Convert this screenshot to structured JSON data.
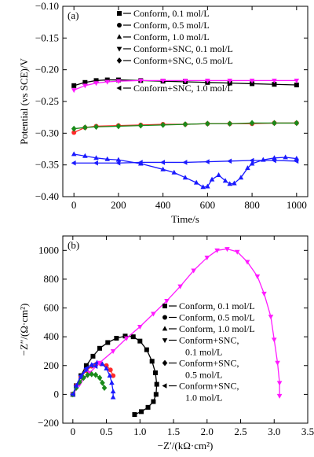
{
  "chart_data": [
    {
      "type": "line",
      "panel_label": "(a)",
      "xlabel": "Time/s",
      "ylabel": "Potential (vs SCE)/V",
      "xlim": [
        -50,
        1050
      ],
      "ylim": [
        -0.4,
        -0.1
      ],
      "xticks": [
        0,
        200,
        400,
        600,
        800,
        1000
      ],
      "yticks": [
        -0.4,
        -0.35,
        -0.3,
        -0.25,
        -0.2,
        -0.15,
        -0.1
      ],
      "xtick_labels": [
        "0",
        "200",
        "400",
        "600",
        "800",
        "1000"
      ],
      "ytick_labels": [
        "−0.40",
        "−0.35",
        "−0.30",
        "−0.25",
        "−0.20",
        "−0.15",
        "−0.10"
      ],
      "legend_placement": "top-right",
      "series": [
        {
          "name": "Conform, 0.1 mol/L",
          "color": "#000000",
          "marker": "square",
          "x": [
            0,
            50,
            100,
            150,
            200,
            300,
            400,
            500,
            600,
            700,
            800,
            900,
            1000
          ],
          "y": [
            -0.225,
            -0.22,
            -0.217,
            -0.216,
            -0.216,
            -0.217,
            -0.218,
            -0.219,
            -0.22,
            -0.221,
            -0.222,
            -0.223,
            -0.224
          ]
        },
        {
          "name": "Conform, 0.5 mol/L",
          "color": "#ff2a2a",
          "marker": "circle",
          "x": [
            0,
            50,
            100,
            200,
            300,
            400,
            500,
            600,
            700,
            800,
            900,
            1000
          ],
          "y": [
            -0.299,
            -0.291,
            -0.289,
            -0.288,
            -0.287,
            -0.286,
            -0.286,
            -0.285,
            -0.285,
            -0.285,
            -0.284,
            -0.284
          ]
        },
        {
          "name": "Conform, 1.0 mol/L",
          "color": "#1a1aff",
          "marker": "triangle-up",
          "x": [
            0,
            50,
            100,
            150,
            200,
            300,
            400,
            450,
            500,
            550,
            580,
            600,
            620,
            650,
            680,
            700,
            720,
            750,
            780,
            800,
            850,
            900,
            950,
            1000
          ],
          "y": [
            -0.333,
            -0.336,
            -0.339,
            -0.341,
            -0.342,
            -0.348,
            -0.357,
            -0.362,
            -0.37,
            -0.378,
            -0.385,
            -0.384,
            -0.373,
            -0.366,
            -0.375,
            -0.38,
            -0.379,
            -0.37,
            -0.355,
            -0.348,
            -0.342,
            -0.339,
            -0.338,
            -0.34
          ]
        },
        {
          "name": "Conform+SNC, 0.1 mol/L",
          "color": "#ff1aff",
          "marker": "triangle-down",
          "x": [
            0,
            50,
            100,
            150,
            200,
            300,
            400,
            500,
            600,
            700,
            800,
            900,
            1000
          ],
          "y": [
            -0.232,
            -0.225,
            -0.221,
            -0.219,
            -0.218,
            -0.217,
            -0.217,
            -0.217,
            -0.217,
            -0.217,
            -0.217,
            -0.217,
            -0.217
          ]
        },
        {
          "name": "Conform+SNC, 0.5 mol/L",
          "color": "#1a8a1a",
          "marker": "diamond",
          "x": [
            0,
            50,
            100,
            200,
            300,
            400,
            500,
            600,
            700,
            800,
            900,
            1000
          ],
          "y": [
            -0.293,
            -0.291,
            -0.29,
            -0.289,
            -0.288,
            -0.287,
            -0.286,
            -0.285,
            -0.285,
            -0.284,
            -0.284,
            -0.284
          ]
        },
        {
          "name": "Conform+SNC, 1.0 mol/L",
          "color": "#1a1aff",
          "marker": "triangle-left",
          "x": [
            0,
            100,
            200,
            300,
            400,
            500,
            600,
            700,
            800,
            900,
            1000
          ],
          "y": [
            -0.347,
            -0.347,
            -0.347,
            -0.346,
            -0.346,
            -0.346,
            -0.345,
            -0.344,
            -0.343,
            -0.343,
            -0.344
          ]
        }
      ]
    },
    {
      "type": "scatter",
      "panel_label": "(b)",
      "xlabel": "−Z′/(kΩ·cm²)",
      "ylabel": "−Z″/(Ω·cm²)",
      "xlim": [
        -0.15,
        3.5
      ],
      "ylim": [
        -200,
        1100
      ],
      "xticks": [
        0,
        0.5,
        1.0,
        1.5,
        2.0,
        2.5,
        3.0,
        3.5
      ],
      "yticks": [
        -200,
        0,
        200,
        400,
        600,
        800,
        1000
      ],
      "xtick_labels": [
        "0",
        "0.5",
        "1.0",
        "1.5",
        "2.0",
        "2.5",
        "3.0",
        "3.5"
      ],
      "ytick_labels": [
        "−200",
        "0",
        "200",
        "400",
        "600",
        "800",
        "1000"
      ],
      "legend_placement": "center-right",
      "series": [
        {
          "name": "Conform, 0.1 mol/L",
          "color": "#000000",
          "marker": "square",
          "x": [
            0,
            0.05,
            0.12,
            0.2,
            0.3,
            0.4,
            0.52,
            0.65,
            0.78,
            0.9,
            1.0,
            1.1,
            1.18,
            1.23,
            1.25,
            1.24,
            1.2,
            1.12,
            1.02,
            0.92
          ],
          "y": [
            0,
            60,
            130,
            200,
            265,
            320,
            360,
            390,
            405,
            400,
            370,
            310,
            230,
            150,
            70,
            0,
            -50,
            -90,
            -120,
            -140
          ]
        },
        {
          "name": "Conform, 0.5 mol/L",
          "color": "#ff2a2a",
          "marker": "circle",
          "x": [
            0,
            0.05,
            0.12,
            0.2,
            0.28,
            0.35,
            0.42,
            0.5,
            0.56,
            0.6
          ],
          "y": [
            0,
            60,
            120,
            165,
            195,
            210,
            212,
            200,
            170,
            130
          ]
        },
        {
          "name": "Conform, 1.0 mol/L",
          "color": "#1a1aff",
          "marker": "triangle-up",
          "x": [
            0,
            0.05,
            0.12,
            0.2,
            0.28,
            0.36,
            0.44,
            0.5,
            0.55,
            0.58,
            0.6,
            0.6
          ],
          "y": [
            0,
            60,
            120,
            170,
            205,
            220,
            210,
            180,
            130,
            80,
            20,
            -20
          ]
        },
        {
          "name": "Conform+SNC,\n0.1 mol/L",
          "color": "#ff1aff",
          "marker": "triangle-down",
          "x": [
            0,
            0.1,
            0.25,
            0.4,
            0.6,
            0.8,
            1.0,
            1.2,
            1.4,
            1.6,
            1.8,
            2.0,
            2.15,
            2.3,
            2.45,
            2.6,
            2.75,
            2.85,
            2.95,
            3.0,
            3.05,
            3.08,
            3.08
          ],
          "y": [
            0,
            70,
            150,
            220,
            300,
            390,
            470,
            560,
            650,
            750,
            860,
            950,
            1000,
            1010,
            990,
            920,
            820,
            700,
            540,
            380,
            220,
            80,
            -10
          ]
        },
        {
          "name": "Conform+SNC,\n0.5 mol/L",
          "color": "#1a8a1a",
          "marker": "diamond",
          "x": [
            0,
            0.05,
            0.1,
            0.16,
            0.22,
            0.28,
            0.34,
            0.4,
            0.44,
            0.47
          ],
          "y": [
            0,
            45,
            85,
            115,
            135,
            140,
            135,
            115,
            80,
            45
          ]
        },
        {
          "name": "Conform+SNC,\n1.0 mol/L",
          "color": "#1a1aff",
          "marker": "triangle-left",
          "x": [
            0,
            0.05,
            0.12,
            0.2,
            0.28,
            0.34
          ],
          "y": [
            0,
            60,
            130,
            180,
            200,
            195
          ]
        }
      ]
    }
  ]
}
